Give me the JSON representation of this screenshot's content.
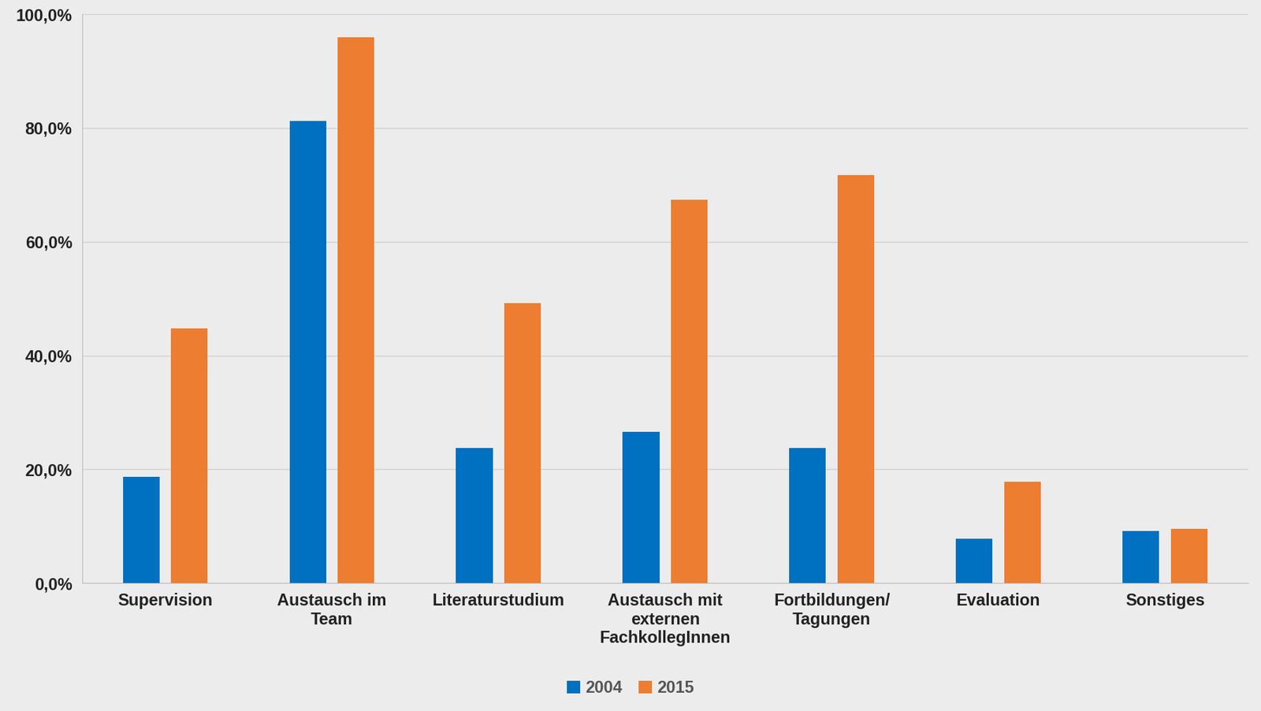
{
  "chart_data": {
    "type": "bar",
    "categories": [
      "Supervision",
      "Austausch im\nTeam",
      "Literaturstudium",
      "Austausch mit\nexternen\nFachkollegInnen",
      "Fortbildungen/\nTagungen",
      "Evaluation",
      "Sonstiges"
    ],
    "series": [
      {
        "name": "2004",
        "color": "#0070c0",
        "values": [
          18.7,
          81.2,
          23.8,
          26.6,
          23.8,
          7.8,
          9.2
        ]
      },
      {
        "name": "2015",
        "color": "#ed7d31",
        "values": [
          44.8,
          95.9,
          49.2,
          67.4,
          71.7,
          17.8,
          9.5
        ]
      }
    ],
    "ylim": [
      0,
      100
    ],
    "yticks": [
      {
        "value": 0,
        "label": "0,0%"
      },
      {
        "value": 20,
        "label": "20,0%"
      },
      {
        "value": 40,
        "label": "40,0%"
      },
      {
        "value": 60,
        "label": "60,0%"
      },
      {
        "value": 80,
        "label": "80,0%"
      },
      {
        "value": 100,
        "label": "100,0%"
      }
    ],
    "grid": true,
    "legend": "lower center"
  }
}
